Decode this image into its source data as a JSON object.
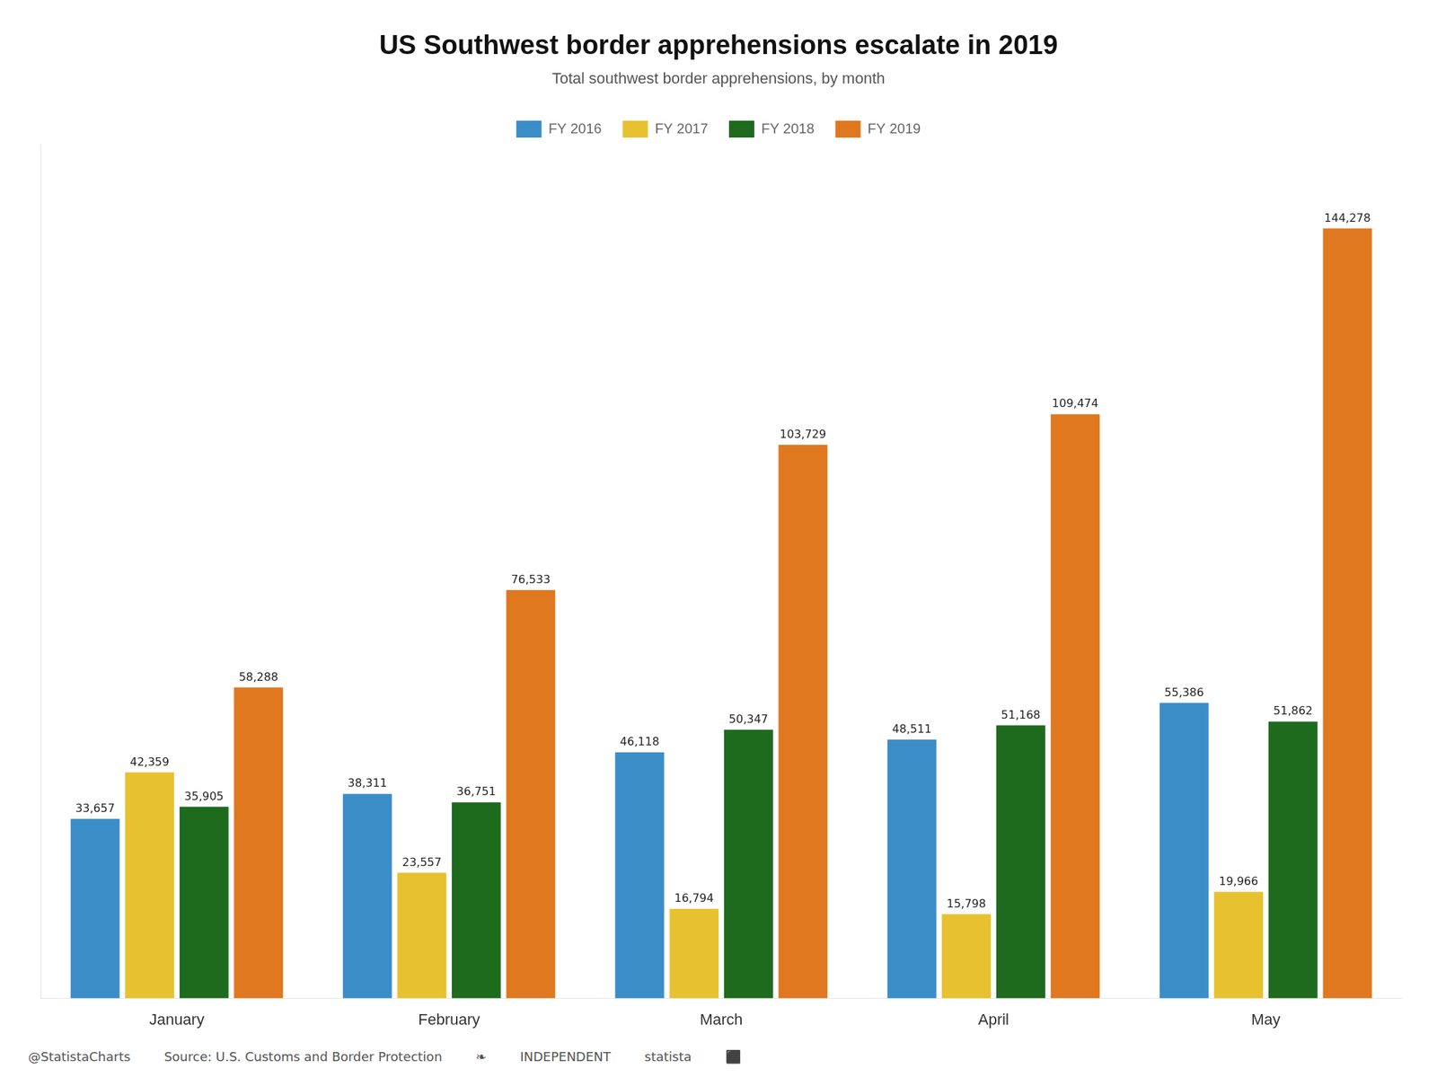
{
  "chart_data": {
    "type": "bar",
    "title": "US Southwest border apprehensions escalate in 2019",
    "subtitle": "Total southwest border apprehensions, by month",
    "categories": [
      "January",
      "February",
      "March",
      "April",
      "May"
    ],
    "series": [
      {
        "name": "FY 2016",
        "color": "#3B8DC8",
        "values": [
          33657,
          38311,
          46118,
          48511,
          55386
        ],
        "value_labels": [
          "33,657",
          "38,311",
          "46,118",
          "48,511",
          "55,386"
        ]
      },
      {
        "name": "FY 2017",
        "color": "#E8C130",
        "values": [
          42359,
          23557,
          16794,
          15798,
          19966
        ],
        "value_labels": [
          "42,359",
          "23,557",
          "16,794",
          "15,798",
          "19,966"
        ]
      },
      {
        "name": "FY 2018",
        "color": "#1E6B1E",
        "values": [
          35905,
          36751,
          50347,
          51168,
          51862
        ],
        "value_labels": [
          "35,905",
          "36,751",
          "50,347",
          "51,168",
          "51,862"
        ]
      },
      {
        "name": "FY 2019",
        "color": "#E07820",
        "values": [
          58288,
          76533,
          103729,
          109474,
          144278
        ],
        "value_labels": [
          "58,288",
          "76,533",
          "103,729",
          "109,474",
          "144,278"
        ]
      }
    ],
    "ylim": [
      0,
      160000
    ],
    "grid": false,
    "legend": "top",
    "data_labels": true,
    "tick_labels": "x",
    "annotations": [
      "@StatistaCharts",
      "Source: U.S. Customs and Border Protection",
      "❧",
      "INDEPENDENT",
      "statista",
      "⬛"
    ]
  }
}
